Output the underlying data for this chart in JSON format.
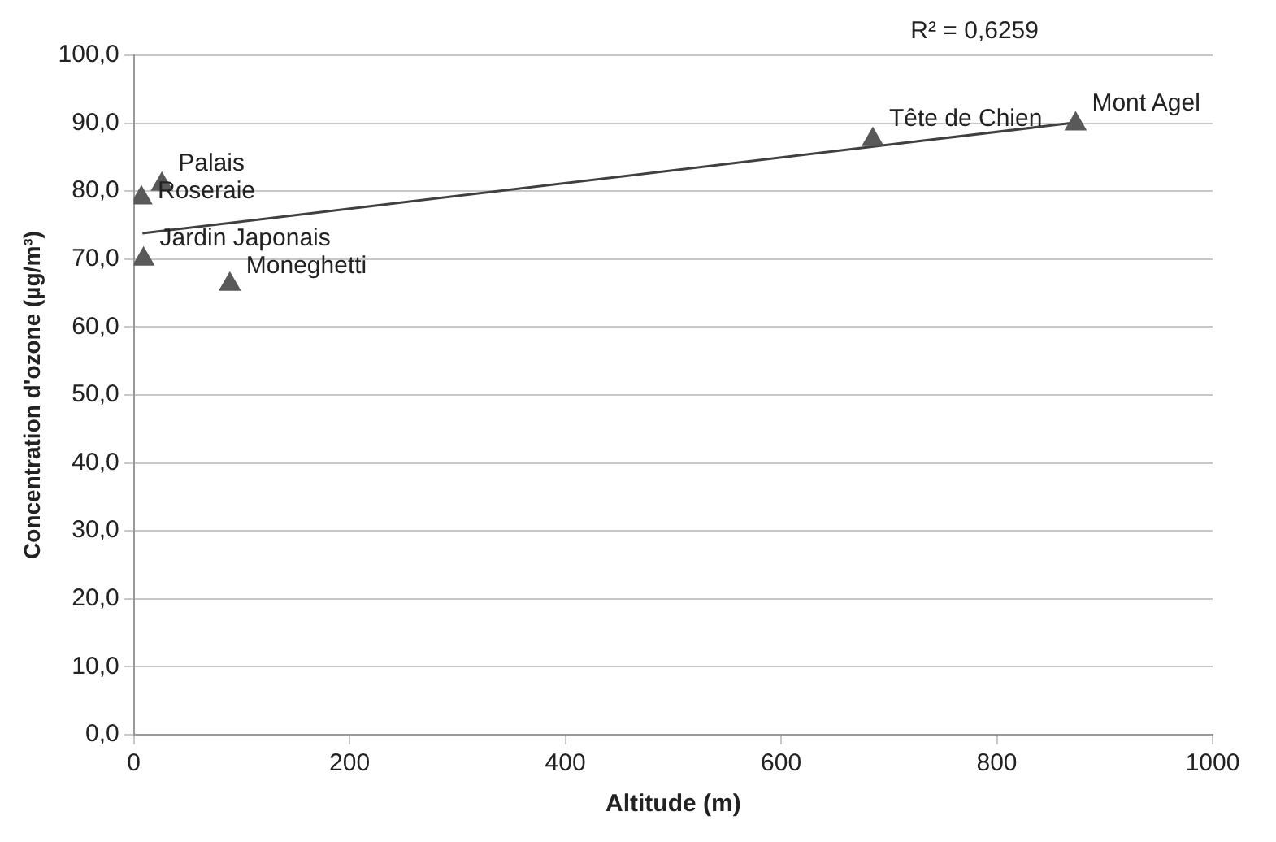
{
  "chart_data": {
    "type": "scatter",
    "xlabel": "Altitude (m)",
    "ylabel": "Concentration d'ozone (µg/m³)",
    "series": [
      {
        "type": "scatter",
        "color": "#595959",
        "marker": "triangle",
        "x": [
          7,
          26,
          9,
          89,
          685,
          873
        ],
        "values": [
          79,
          81,
          70,
          66.3,
          87.6,
          89.9
        ]
      },
      {
        "type": "line",
        "color": "#404040",
        "line_style": "solid",
        "marker": "none",
        "x": [
          8,
          873
        ],
        "values": [
          73.8,
          90.1
        ]
      }
    ],
    "annotations": [
      {
        "text": "Roseraie",
        "x": 7,
        "y": 79
      },
      {
        "text": "Palais",
        "x": 26,
        "y": 81
      },
      {
        "text": "Jardin Japonais",
        "x": 9,
        "y": 70
      },
      {
        "text": "Moneghetti",
        "x": 89,
        "y": 66.3
      },
      {
        "text": "Tête de Chien",
        "x": 685,
        "y": 87.6
      },
      {
        "text": "Mont Agel",
        "x": 873,
        "y": 89.9
      },
      "R² = 0,6259"
    ],
    "xlim": [
      0,
      1000
    ],
    "xticks": [
      0,
      200,
      400,
      600,
      800,
      1000
    ],
    "ylim": [
      0,
      100
    ],
    "yticks": [
      {
        "value": 0,
        "label": "0,0"
      },
      {
        "value": 10,
        "label": "10,0"
      },
      {
        "value": 20,
        "label": "20,0"
      },
      {
        "value": 30,
        "label": "30,0"
      },
      {
        "value": 40,
        "label": "40,0"
      },
      {
        "value": 50,
        "label": "50,0"
      },
      {
        "value": 60,
        "label": "60,0"
      },
      {
        "value": 70,
        "label": "70,0"
      },
      {
        "value": 80,
        "label": "80,0"
      },
      {
        "value": 90,
        "label": "90,0"
      },
      {
        "value": 100,
        "label": "100,0"
      }
    ],
    "grid": "y",
    "legend": false
  }
}
